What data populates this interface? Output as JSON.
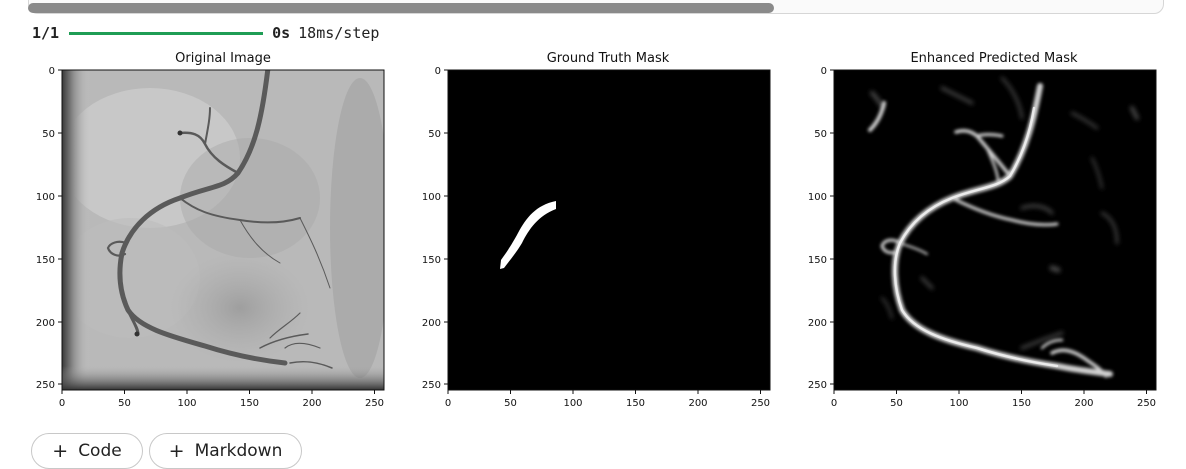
{
  "progress": {
    "count": "1/1",
    "fraction": 1.0,
    "time": "0s",
    "rate": "18ms/step",
    "bar_color": "#1f9d55"
  },
  "plots": [
    {
      "title": "Original Image",
      "xticks": [
        "0",
        "50",
        "100",
        "150",
        "200",
        "250"
      ],
      "yticks": [
        "0",
        "50",
        "100",
        "150",
        "200",
        "250"
      ]
    },
    {
      "title": "Ground Truth Mask",
      "xticks": [
        "0",
        "50",
        "100",
        "150",
        "200",
        "250"
      ],
      "yticks": [
        "0",
        "50",
        "100",
        "150",
        "200",
        "250"
      ]
    },
    {
      "title": "Enhanced Predicted Mask",
      "xticks": [
        "0",
        "50",
        "100",
        "150",
        "200",
        "250"
      ],
      "yticks": [
        "0",
        "50",
        "100",
        "150",
        "200",
        "250"
      ]
    }
  ],
  "cell_buttons": {
    "code_label": "Code",
    "markdown_label": "Markdown",
    "plus_icon": "plus-icon"
  }
}
